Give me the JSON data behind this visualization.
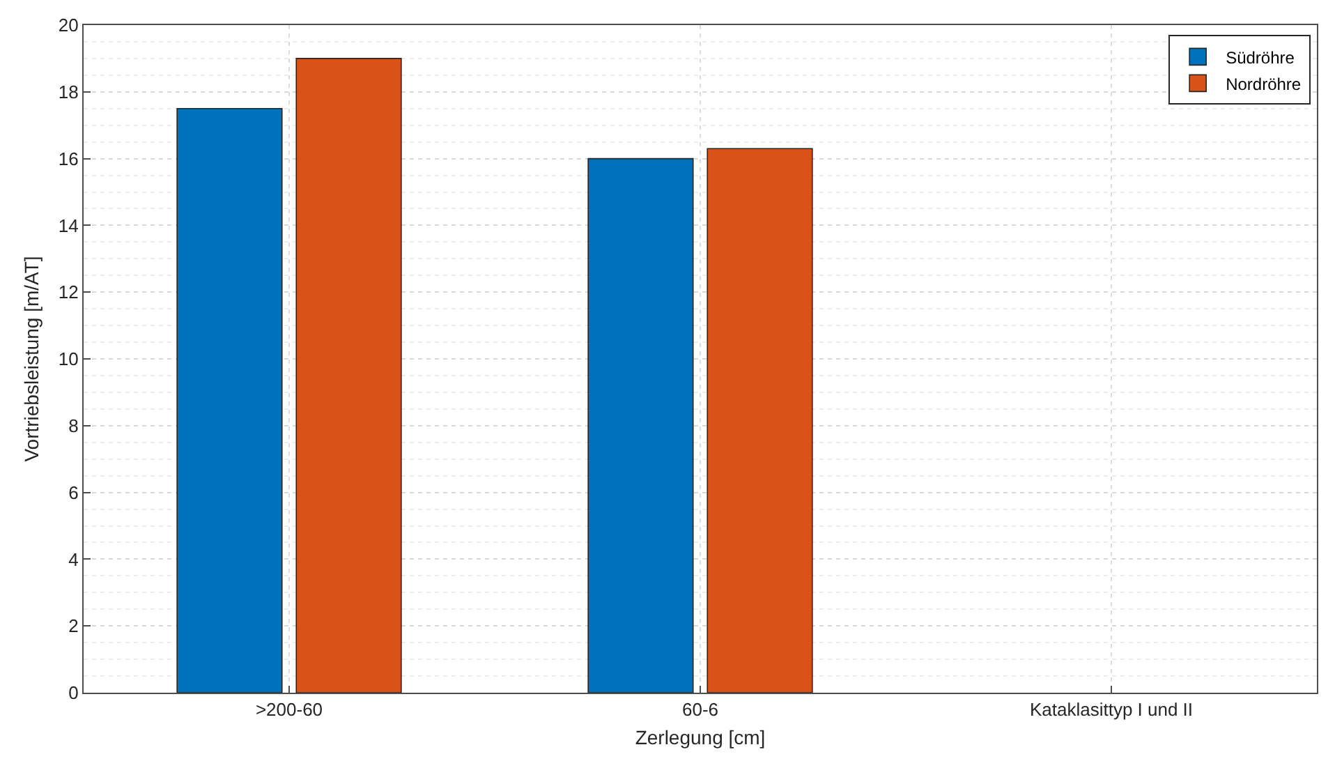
{
  "chart_data": {
    "type": "bar",
    "xlabel": "Zerlegung [cm]",
    "ylabel": "Vortriebsleistung [m/AT]",
    "categories": [
      ">200-60",
      "60-6",
      "Kataklasittyp I und II"
    ],
    "series": [
      {
        "name": "Südröhre",
        "color": "#0072bd",
        "values": [
          17.5,
          16.0,
          null
        ]
      },
      {
        "name": "Nordröhre",
        "color": "#d95319",
        "values": [
          19.0,
          16.3,
          null
        ]
      }
    ],
    "ylim": [
      0,
      20
    ],
    "yticks": [
      0,
      2,
      4,
      6,
      8,
      10,
      12,
      14,
      16,
      18,
      20
    ],
    "grid": true,
    "legend": "top right"
  }
}
